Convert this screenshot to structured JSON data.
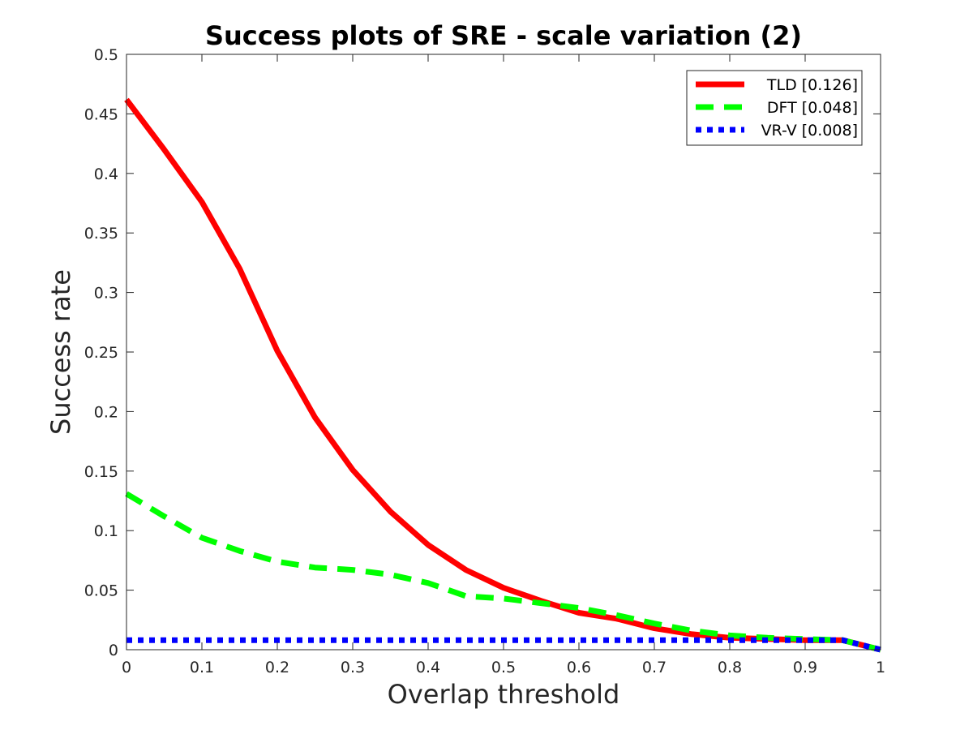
{
  "chart_data": {
    "type": "line",
    "title": "Success plots of SRE - scale variation (2)",
    "xlabel": "Overlap threshold",
    "ylabel": "Success rate",
    "xlim": [
      0,
      1
    ],
    "ylim": [
      0,
      0.5
    ],
    "xticks": [
      "0",
      "0.1",
      "0.2",
      "0.3",
      "0.4",
      "0.5",
      "0.6",
      "0.7",
      "0.8",
      "0.9",
      "1"
    ],
    "yticks": [
      "0",
      "0.05",
      "0.1",
      "0.15",
      "0.2",
      "0.25",
      "0.3",
      "0.35",
      "0.4",
      "0.45",
      "0.5"
    ],
    "grid": false,
    "legend_position": "top-right",
    "x": [
      0,
      0.05,
      0.1,
      0.15,
      0.2,
      0.25,
      0.3,
      0.35,
      0.4,
      0.45,
      0.5,
      0.55,
      0.6,
      0.65,
      0.7,
      0.75,
      0.8,
      0.85,
      0.9,
      0.95,
      1
    ],
    "series": [
      {
        "name": "TLD [0.126]",
        "color": "#ff0000",
        "style": "solid",
        "values": [
          0.462,
          0.42,
          0.376,
          0.32,
          0.251,
          0.195,
          0.151,
          0.116,
          0.088,
          0.067,
          0.052,
          0.041,
          0.031,
          0.026,
          0.018,
          0.013,
          0.01,
          0.009,
          0.008,
          0.008,
          0.0
        ]
      },
      {
        "name": "DFT [0.048]",
        "color": "#00ff00",
        "style": "dashed",
        "values": [
          0.131,
          0.112,
          0.094,
          0.083,
          0.074,
          0.069,
          0.067,
          0.063,
          0.056,
          0.045,
          0.043,
          0.039,
          0.035,
          0.029,
          0.022,
          0.016,
          0.012,
          0.01,
          0.009,
          0.008,
          0.0
        ]
      },
      {
        "name": "VR-V [0.008]",
        "color": "#0000ff",
        "style": "dotted",
        "values": [
          0.008,
          0.008,
          0.008,
          0.008,
          0.008,
          0.008,
          0.008,
          0.008,
          0.008,
          0.008,
          0.008,
          0.008,
          0.008,
          0.008,
          0.008,
          0.008,
          0.008,
          0.008,
          0.008,
          0.008,
          0.0
        ]
      }
    ]
  }
}
